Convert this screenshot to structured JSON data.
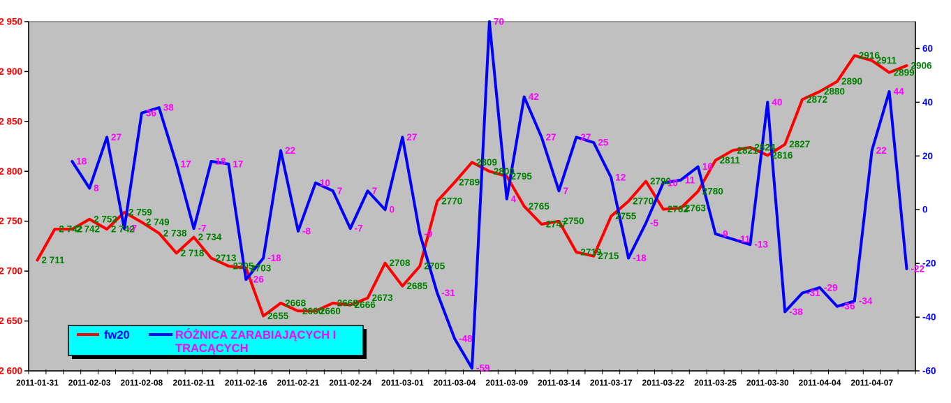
{
  "chart_data": {
    "type": "line",
    "title": "",
    "n_points": 51,
    "x_first_date": "2011-01-31",
    "x_last_date": "2011-04-11",
    "x_tick_indices": [
      0,
      3,
      6,
      9,
      12,
      15,
      18,
      21,
      24,
      27,
      30,
      33,
      36,
      39,
      42,
      45,
      48
    ],
    "x_tick_labels": [
      "2011-01-31",
      "2011-02-03",
      "2011-02-08",
      "2011-02-11",
      "2011-02-16",
      "2011-02-21",
      "2011-02-24",
      "2011-03-01",
      "2011-03-04",
      "2011-03-09",
      "2011-03-14",
      "2011-03-17",
      "2011-03-22",
      "2011-03-25",
      "2011-03-30",
      "2011-04-04",
      "2011-04-07"
    ],
    "axes": {
      "left": {
        "min": 2600,
        "max": 2950,
        "step": 50,
        "color": "#ff0000",
        "tick_values": [
          2950,
          2900,
          2850,
          2800,
          2750,
          2700,
          2650,
          2600
        ],
        "tick_labels": [
          "2 950",
          "2 900",
          "2 850",
          "2 800",
          "2 750",
          "2 700",
          "2 650",
          "2 600"
        ]
      },
      "right": {
        "min": -60,
        "max": 70,
        "step": 20,
        "color": "#0000ff",
        "tick_values": [
          60,
          40,
          20,
          0,
          -20,
          -40,
          -60
        ],
        "tick_labels": [
          "60",
          "40",
          "20",
          "0",
          "-20",
          "-40",
          "-60"
        ]
      },
      "x_color": "#000000",
      "grid": "off",
      "plot_bg": "#c0c0c0",
      "plot_border": "#808080"
    },
    "series": [
      {
        "name": "fw20",
        "axis": "left",
        "line_color": "#ff0000",
        "label_color": "#008000",
        "start_index": 0,
        "values": [
          2711,
          2742,
          2742,
          2752,
          2742,
          2759,
          2749,
          2738,
          2718,
          2734,
          2713,
          2705,
          2703,
          2655,
          2668,
          2660,
          2660,
          2668,
          2666,
          2673,
          2708,
          2685,
          2705,
          2770,
          2789,
          2809,
          2800,
          2795,
          2765,
          2747,
          2750,
          2719,
          2715,
          2755,
          2770,
          2790,
          2762,
          2763,
          2780,
          2811,
          2821,
          2824,
          2816,
          2827,
          2872,
          2880,
          2890,
          2916,
          2911,
          2899,
          2906
        ],
        "labels": [
          "2 711",
          "2 742",
          "2 742",
          "2 752",
          "2 742",
          "2 759",
          "2 749",
          "2 738",
          "2 718",
          "2 734",
          "2713",
          "2705",
          "2703",
          "2655",
          "2668",
          "2660",
          "2660",
          "2668",
          "2666",
          "2673",
          "2708",
          "2685",
          "2705",
          "2770",
          "2789",
          "2809",
          "2800",
          "2795",
          "2765",
          "2747",
          "2750",
          "2719",
          "2715",
          "2755",
          "2770",
          "2790",
          "2762",
          "2763",
          "2780",
          "2811",
          "2821",
          "2824",
          "2816",
          "2827",
          "2872",
          "2880",
          "2890",
          "2916",
          "2911",
          "2899",
          "2906"
        ]
      },
      {
        "name": "RÓŻNICA ZARABIAJĄCYCH I TRACĄCYCH",
        "axis": "right",
        "line_color": "#0000ff",
        "label_color": "#ff00ff",
        "start_index": 2,
        "values": [
          18,
          8,
          27,
          -7,
          36,
          38,
          17,
          -7,
          18,
          17,
          -26,
          -18,
          22,
          -8,
          10,
          7,
          -7,
          7,
          0,
          27,
          -9,
          -31,
          -48,
          -59,
          70,
          4,
          42,
          27,
          7,
          27,
          25,
          12,
          -18,
          -5,
          10,
          11,
          16,
          -9,
          -11,
          -13,
          40,
          -38,
          -31,
          -29,
          -36,
          -34,
          22,
          44,
          -22
        ],
        "labels": [
          "18",
          "8",
          "27",
          "-7",
          "36",
          "38",
          "17",
          "-7",
          "18",
          "17",
          "-26",
          "-18",
          "22",
          "-8",
          "10",
          "7",
          "-7",
          "7",
          "0",
          "27",
          "-9",
          "-31",
          "-48",
          "-59",
          "70",
          "4",
          "42",
          "27",
          "7",
          "27",
          "25",
          "12",
          "-18",
          "-5",
          "10",
          "11",
          "16",
          "-9",
          "-11",
          "-13",
          "40",
          "-38",
          "-31",
          "-29",
          "-36",
          "-34",
          "22",
          "44",
          "-22"
        ]
      }
    ],
    "legend": {
      "position": "bottom-left-inside",
      "bg_color": "#00ffff",
      "border_color": "#000000",
      "shadow_color": "#000000",
      "items": [
        {
          "swatch_color": "#ff0000",
          "text_color": "#0000ff",
          "lines": [
            "fw20"
          ]
        },
        {
          "swatch_color": "#0000ff",
          "text_color": "#ff00ff",
          "lines": [
            "RÓŻNICA ZARABIAJĄCYCH I",
            "TRACĄCYCH"
          ]
        }
      ]
    }
  }
}
